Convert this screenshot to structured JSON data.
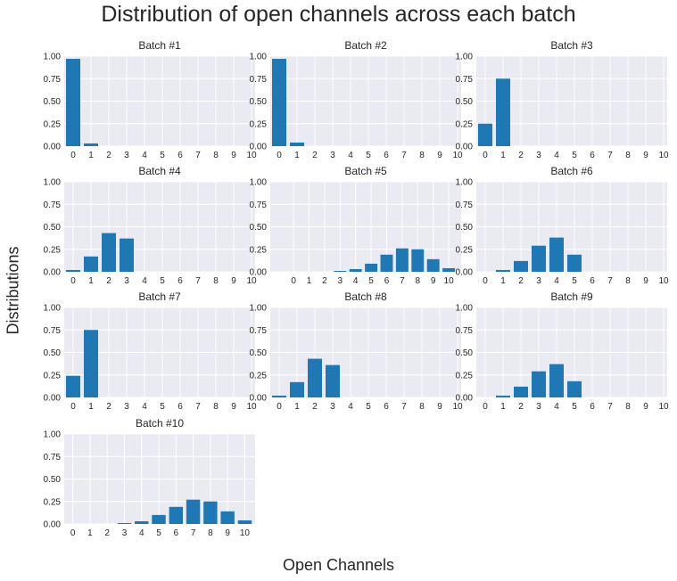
{
  "figure": {
    "title": "Distribution of open channels across each batch",
    "xlabel": "Open Channels",
    "ylabel": "Distributions"
  },
  "colors": {
    "bar": "#1f77b4",
    "panel_background": "#eaeaf2",
    "grid": "#ffffff"
  },
  "chart_data": [
    {
      "type": "bar",
      "title": "Batch #1",
      "categories": [
        0,
        1,
        2,
        3,
        4,
        5,
        6,
        7,
        8,
        9,
        10
      ],
      "values": [
        0.97,
        0.03,
        0,
        0,
        0,
        0,
        0,
        0,
        0,
        0,
        0
      ],
      "ylim": [
        0,
        1
      ],
      "yticks": [
        "0.00",
        "0.25",
        "0.50",
        "0.75",
        "1.00"
      ],
      "xticks": [
        "0",
        "1",
        "2",
        "3",
        "4",
        "5",
        "6",
        "7",
        "8",
        "9",
        "10"
      ],
      "xlim": [
        -0.5,
        10.2
      ],
      "grid": true
    },
    {
      "type": "bar",
      "title": "Batch #2",
      "categories": [
        0,
        1,
        2,
        3,
        4,
        5,
        6,
        7,
        8,
        9,
        10
      ],
      "values": [
        0.97,
        0.04,
        0,
        0,
        0,
        0,
        0,
        0,
        0,
        0,
        0
      ],
      "ylim": [
        0,
        1
      ],
      "yticks": [
        "0.00",
        "0.25",
        "0.50",
        "0.75",
        "1.00"
      ],
      "xticks": [
        "0",
        "1",
        "2",
        "3",
        "4",
        "5",
        "6",
        "7",
        "8",
        "9",
        "10"
      ],
      "xlim": [
        -0.5,
        10.2
      ],
      "grid": true
    },
    {
      "type": "bar",
      "title": "Batch #3",
      "categories": [
        0,
        1,
        2,
        3,
        4,
        5,
        6,
        7,
        8,
        9,
        10
      ],
      "values": [
        0.25,
        0.75,
        0,
        0,
        0,
        0,
        0,
        0,
        0,
        0,
        0
      ],
      "ylim": [
        0,
        1
      ],
      "yticks": [
        "0.00",
        "0.25",
        "0.50",
        "0.75",
        "1.00"
      ],
      "xticks": [
        "0",
        "1",
        "2",
        "3",
        "4",
        "5",
        "6",
        "7",
        "8",
        "9",
        "10"
      ],
      "xlim": [
        -0.5,
        10.2
      ],
      "grid": true
    },
    {
      "type": "bar",
      "title": "Batch #4",
      "categories": [
        0,
        1,
        2,
        3,
        4,
        5,
        6,
        7,
        8,
        9,
        10
      ],
      "values": [
        0.02,
        0.17,
        0.43,
        0.37,
        0,
        0,
        0,
        0,
        0,
        0,
        0
      ],
      "ylim": [
        0,
        1
      ],
      "yticks": [
        "0.00",
        "0.25",
        "0.50",
        "0.75",
        "1.00"
      ],
      "xticks": [
        "0",
        "1",
        "2",
        "3",
        "4",
        "5",
        "6",
        "7",
        "8",
        "9",
        "10"
      ],
      "xlim": [
        -0.5,
        10.2
      ],
      "grid": true
    },
    {
      "type": "bar",
      "title": "Batch #5",
      "categories": [
        0,
        1,
        2,
        3,
        4,
        5,
        6,
        7,
        8,
        9,
        10
      ],
      "values": [
        0,
        0,
        0,
        0.01,
        0.03,
        0.09,
        0.19,
        0.26,
        0.25,
        0.14,
        0.04
      ],
      "ylim": [
        0,
        1
      ],
      "yticks": [
        "0.00",
        "0.25",
        "0.50",
        "0.75",
        "1.00"
      ],
      "xticks": [
        "0",
        "1",
        "2",
        "3",
        "4",
        "5",
        "6",
        "7",
        "8",
        "9",
        "10"
      ],
      "xlim": [
        -1.5,
        10.8
      ],
      "grid": true
    },
    {
      "type": "bar",
      "title": "Batch #6",
      "categories": [
        0,
        1,
        2,
        3,
        4,
        5,
        6,
        7,
        8,
        9,
        10
      ],
      "values": [
        0,
        0.02,
        0.12,
        0.29,
        0.38,
        0.19,
        0,
        0,
        0,
        0,
        0
      ],
      "ylim": [
        0,
        1
      ],
      "yticks": [
        "0.00",
        "0.25",
        "0.50",
        "0.75",
        "1.00"
      ],
      "xticks": [
        "0",
        "1",
        "2",
        "3",
        "4",
        "5",
        "6",
        "7",
        "8",
        "9",
        "10"
      ],
      "xlim": [
        -0.5,
        10.2
      ],
      "grid": true
    },
    {
      "type": "bar",
      "title": "Batch #7",
      "categories": [
        0,
        1,
        2,
        3,
        4,
        5,
        6,
        7,
        8,
        9,
        10
      ],
      "values": [
        0.24,
        0.75,
        0,
        0,
        0,
        0,
        0,
        0,
        0,
        0,
        0
      ],
      "ylim": [
        0,
        1
      ],
      "yticks": [
        "0.00",
        "0.25",
        "0.50",
        "0.75",
        "1.00"
      ],
      "xticks": [
        "0",
        "1",
        "2",
        "3",
        "4",
        "5",
        "6",
        "7",
        "8",
        "9",
        "10"
      ],
      "xlim": [
        -0.5,
        10.2
      ],
      "grid": true
    },
    {
      "type": "bar",
      "title": "Batch #8",
      "categories": [
        0,
        1,
        2,
        3,
        4,
        5,
        6,
        7,
        8,
        9,
        10
      ],
      "values": [
        0.02,
        0.17,
        0.43,
        0.36,
        0,
        0,
        0,
        0,
        0,
        0,
        0
      ],
      "ylim": [
        0,
        1
      ],
      "yticks": [
        "0.00",
        "0.25",
        "0.50",
        "0.75",
        "1.00"
      ],
      "xticks": [
        "0",
        "1",
        "2",
        "3",
        "4",
        "5",
        "6",
        "7",
        "8",
        "9",
        "10"
      ],
      "xlim": [
        -0.5,
        10.2
      ],
      "grid": true
    },
    {
      "type": "bar",
      "title": "Batch #9",
      "categories": [
        0,
        1,
        2,
        3,
        4,
        5,
        6,
        7,
        8,
        9,
        10
      ],
      "values": [
        0,
        0.02,
        0.12,
        0.29,
        0.37,
        0.18,
        0,
        0,
        0,
        0,
        0
      ],
      "ylim": [
        0,
        1
      ],
      "yticks": [
        "0.00",
        "0.25",
        "0.50",
        "0.75",
        "1.00"
      ],
      "xticks": [
        "0",
        "1",
        "2",
        "3",
        "4",
        "5",
        "6",
        "7",
        "8",
        "9",
        "10"
      ],
      "xlim": [
        -0.5,
        10.2
      ],
      "grid": true
    },
    {
      "type": "bar",
      "title": "Batch #10",
      "categories": [
        0,
        1,
        2,
        3,
        4,
        5,
        6,
        7,
        8,
        9,
        10
      ],
      "values": [
        0,
        0,
        0,
        0.01,
        0.03,
        0.1,
        0.19,
        0.27,
        0.25,
        0.14,
        0.04
      ],
      "ylim": [
        0,
        1
      ],
      "yticks": [
        "0.00",
        "0.25",
        "0.50",
        "0.75",
        "1.00"
      ],
      "xticks": [
        "0",
        "1",
        "2",
        "3",
        "4",
        "5",
        "6",
        "7",
        "8",
        "9",
        "10"
      ],
      "xlim": [
        -0.5,
        10.6
      ],
      "grid": true
    }
  ]
}
